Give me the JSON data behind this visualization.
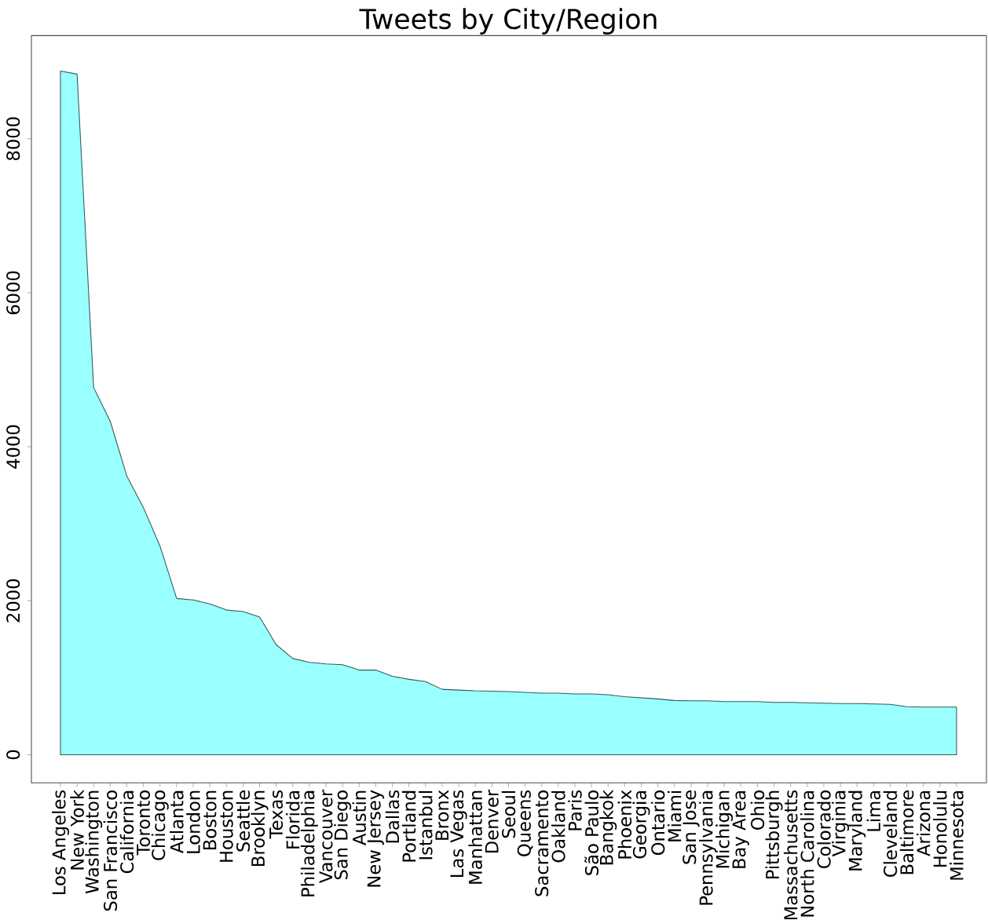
{
  "chart_data": {
    "type": "area",
    "title": "Tweets by City/Region",
    "categories": [
      "Los Angeles",
      "New York",
      "Washington",
      "San Francisco",
      "California",
      "Toronto",
      "Chicago",
      "Atlanta",
      "London",
      "Boston",
      "Houston",
      "Seattle",
      "Brooklyn",
      "Texas",
      "Florida",
      "Philadelphia",
      "Vancouver",
      "San Diego",
      "Austin",
      "New Jersey",
      "Dallas",
      "Portland",
      "Istanbul",
      "Bronx",
      "Las Vegas",
      "Manhattan",
      "Denver",
      "Seoul",
      "Queens",
      "Sacramento",
      "Oakland",
      "Paris",
      "São Paulo",
      "Bangkok",
      "Phoenix",
      "Georgia",
      "Ontario",
      "Miami",
      "San Jose",
      "Pennsylvania",
      "Michigan",
      "Bay Area",
      "Ohio",
      "Pittsburgh",
      "Massachusetts",
      "North Carolina",
      "Colorado",
      "Virginia",
      "Maryland",
      "Lima",
      "Cleveland",
      "Baltimore",
      "Arizona",
      "Honolulu",
      "Minnesota"
    ],
    "values": [
      8880,
      8840,
      4770,
      4330,
      3620,
      3210,
      2710,
      2030,
      2010,
      1960,
      1880,
      1860,
      1790,
      1430,
      1250,
      1200,
      1180,
      1170,
      1100,
      1100,
      1020,
      980,
      950,
      850,
      840,
      830,
      825,
      820,
      810,
      800,
      800,
      790,
      790,
      780,
      755,
      740,
      725,
      705,
      700,
      700,
      690,
      690,
      690,
      680,
      680,
      675,
      670,
      665,
      665,
      660,
      655,
      625,
      620,
      620,
      620
    ],
    "color": "#99ffff",
    "ylim": [
      -365,
      9340
    ],
    "yticks": [
      0,
      2000,
      4000,
      6000,
      8000
    ]
  }
}
